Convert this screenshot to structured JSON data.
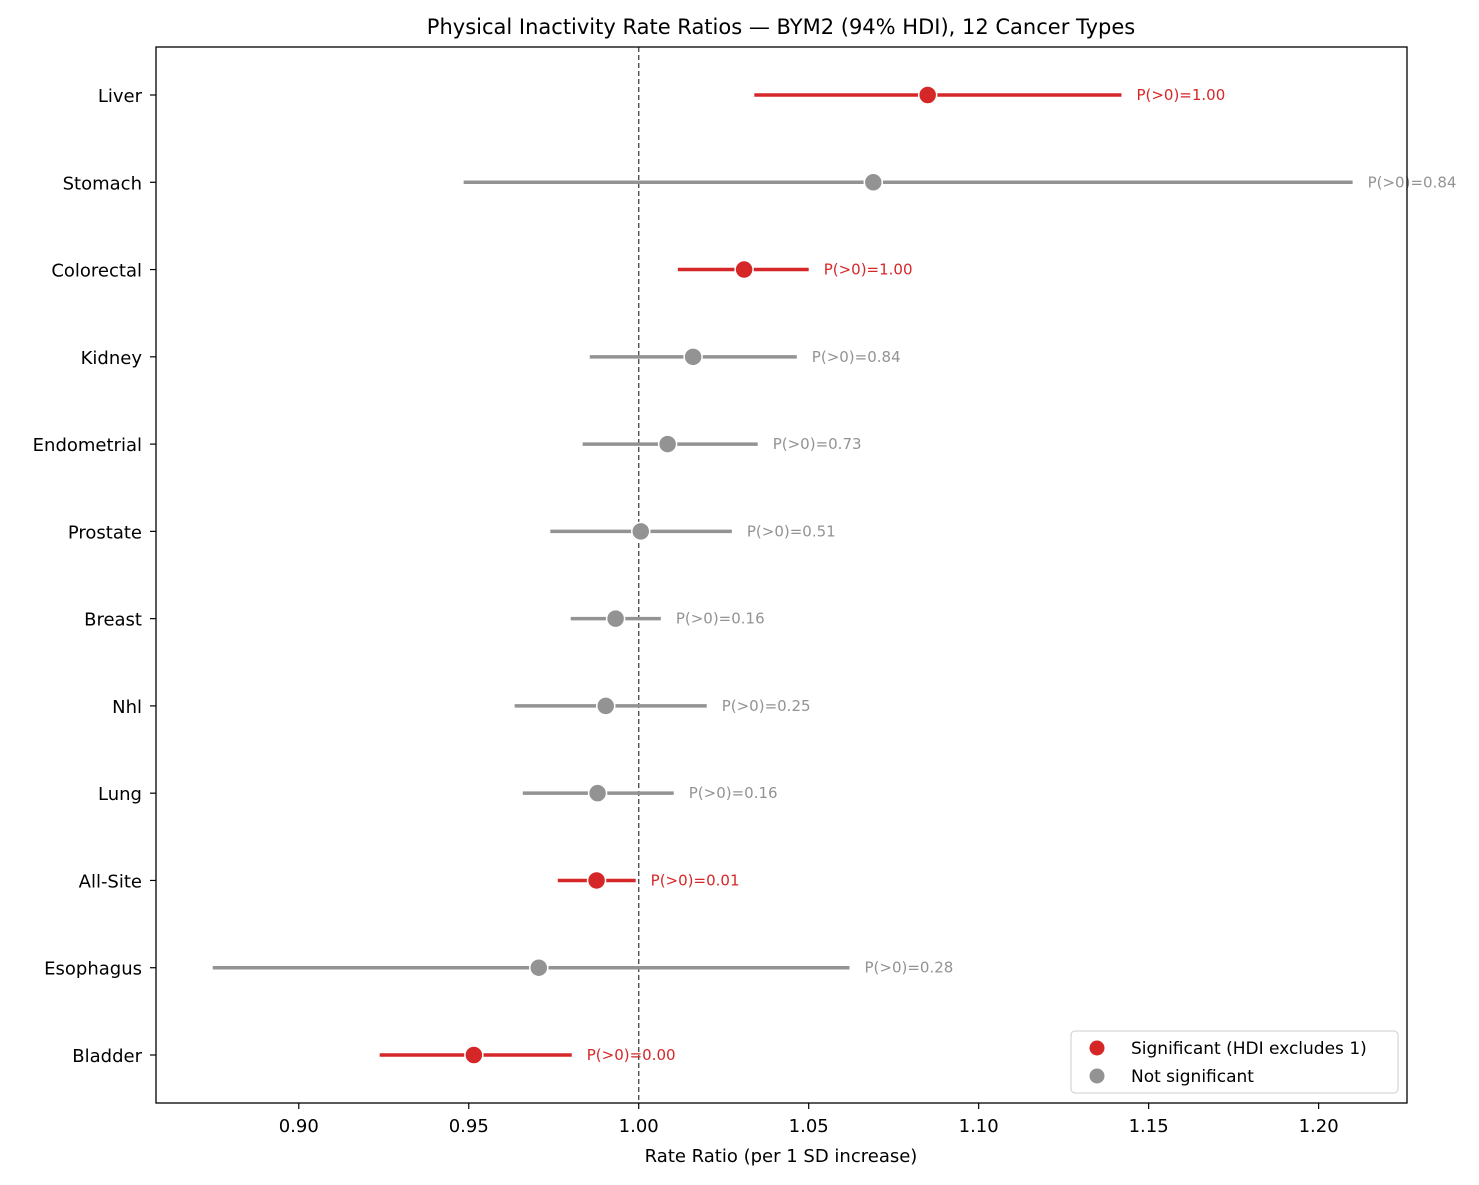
{
  "chart_data": {
    "type": "forest",
    "title": "Physical Inactivity Rate Ratios — BYM2 (94% HDI), 12 Cancer Types",
    "xlabel": "Rate Ratio (per 1 SD increase)",
    "ylabel": "",
    "xlim": [
      0.858,
      1.226
    ],
    "xticks": [
      0.9,
      0.95,
      1.0,
      1.05,
      1.1,
      1.15,
      1.2
    ],
    "xtick_labels": [
      "0.90",
      "0.95",
      "1.00",
      "1.05",
      "1.10",
      "1.15",
      "1.20"
    ],
    "reference_line": 1.0,
    "grid": false,
    "legend_placement": "lower-right",
    "colors": {
      "significant": "#d62728",
      "not_significant": "#939393"
    },
    "legend": [
      {
        "key": "significant",
        "label": "Significant (HDI excludes 1)"
      },
      {
        "key": "not_significant",
        "label": "Not significant"
      }
    ],
    "rows": [
      {
        "label": "Liver",
        "estimate": 1.085,
        "lower": 1.034,
        "upper": 1.142,
        "significant": true,
        "annotation": "P(>0)=1.00"
      },
      {
        "label": "Stomach",
        "estimate": 1.069,
        "lower": 0.9485,
        "upper": 1.21,
        "significant": false,
        "annotation": "P(>0)=0.84"
      },
      {
        "label": "Colorectal",
        "estimate": 1.031,
        "lower": 1.0115,
        "upper": 1.05,
        "significant": true,
        "annotation": "P(>0)=1.00"
      },
      {
        "label": "Kidney",
        "estimate": 1.016,
        "lower": 0.9856,
        "upper": 1.0465,
        "significant": false,
        "annotation": "P(>0)=0.84"
      },
      {
        "label": "Endometrial",
        "estimate": 1.0085,
        "lower": 0.9835,
        "upper": 1.035,
        "significant": false,
        "annotation": "P(>0)=0.73"
      },
      {
        "label": "Prostate",
        "estimate": 1.0006,
        "lower": 0.974,
        "upper": 1.0274,
        "significant": false,
        "annotation": "P(>0)=0.51"
      },
      {
        "label": "Breast",
        "estimate": 0.9932,
        "lower": 0.98,
        "upper": 1.0065,
        "significant": false,
        "annotation": "P(>0)=0.16"
      },
      {
        "label": "Nhl",
        "estimate": 0.9903,
        "lower": 0.9635,
        "upper": 1.02,
        "significant": false,
        "annotation": "P(>0)=0.25"
      },
      {
        "label": "Lung",
        "estimate": 0.9879,
        "lower": 0.9659,
        "upper": 1.0103,
        "significant": false,
        "annotation": "P(>0)=0.16"
      },
      {
        "label": "All-Site",
        "estimate": 0.9876,
        "lower": 0.9762,
        "upper": 0.9991,
        "significant": true,
        "annotation": "P(>0)=0.01"
      },
      {
        "label": "Esophagus",
        "estimate": 0.9706,
        "lower": 0.8747,
        "upper": 1.062,
        "significant": false,
        "annotation": "P(>0)=0.28"
      },
      {
        "label": "Bladder",
        "estimate": 0.9515,
        "lower": 0.9238,
        "upper": 0.9803,
        "significant": true,
        "annotation": "P(>0)=0.00"
      }
    ]
  }
}
